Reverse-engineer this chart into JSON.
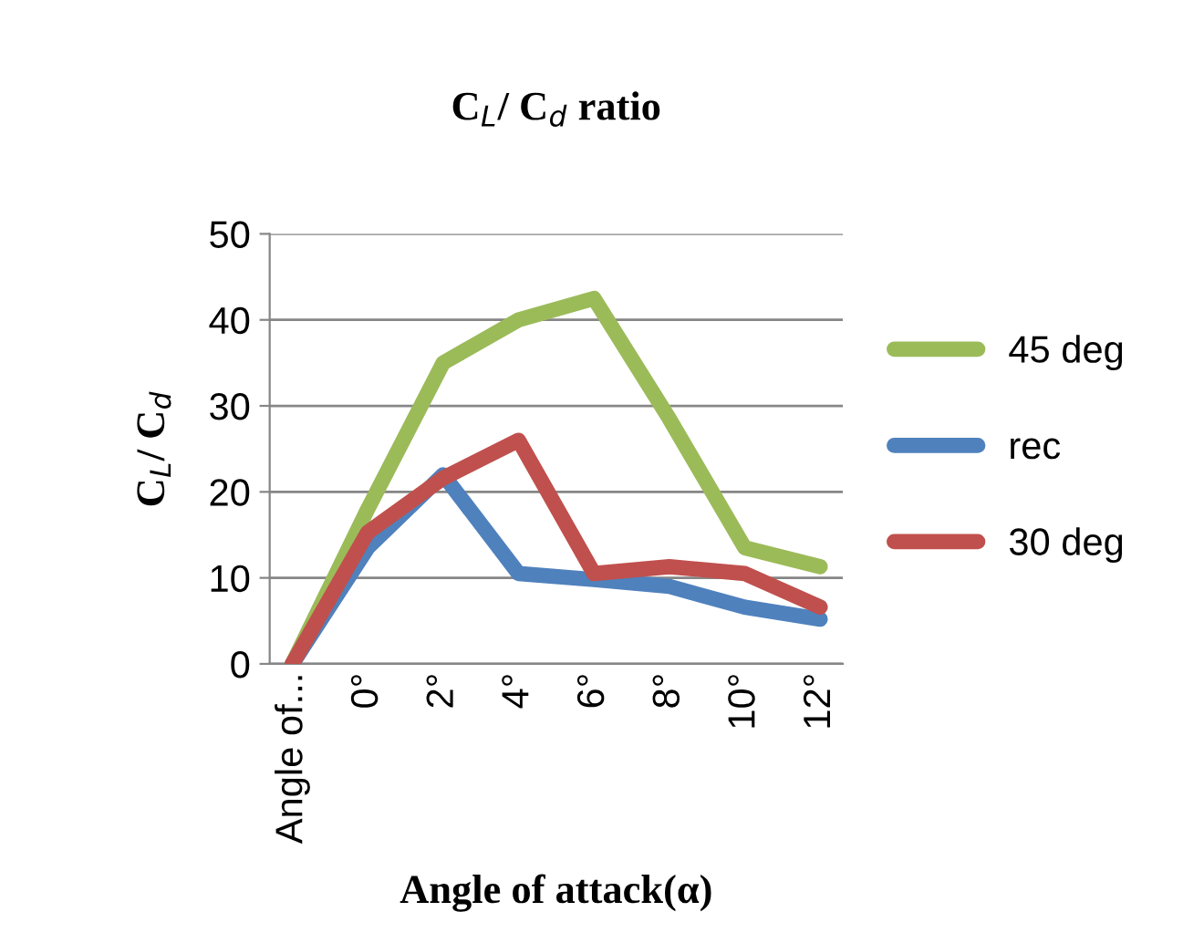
{
  "chart_data": {
    "type": "line",
    "title": "C$_{L}$/ C$_{d}$ ratio",
    "xlabel": "Angle of attack(α)",
    "ylabel": "C$_{L}$/ C$_{d}$",
    "categories": [
      "Angle of...",
      "0°",
      "2°",
      "4°",
      "6°",
      "8°",
      "10°",
      "12°"
    ],
    "series": [
      {
        "name": "45 deg",
        "color": "#9bbb59",
        "values": [
          0,
          18,
          35,
          40,
          42.5,
          28.5,
          13.5,
          11.3
        ]
      },
      {
        "name": "rec",
        "color": "#4f81bd",
        "values": [
          0,
          13.5,
          22,
          10.5,
          9.8,
          9,
          6.6,
          5.2
        ]
      },
      {
        "name": "30 deg",
        "color": "#c0504d",
        "values": [
          0,
          15.3,
          21.6,
          26,
          10.5,
          11.3,
          10.5,
          6.6
        ]
      }
    ],
    "ylim": [
      0,
      50
    ],
    "yticks": [
      0,
      10,
      20,
      30,
      40,
      50
    ],
    "grid": "y",
    "legend": "right",
    "marker": "none",
    "line_style": "solid"
  }
}
